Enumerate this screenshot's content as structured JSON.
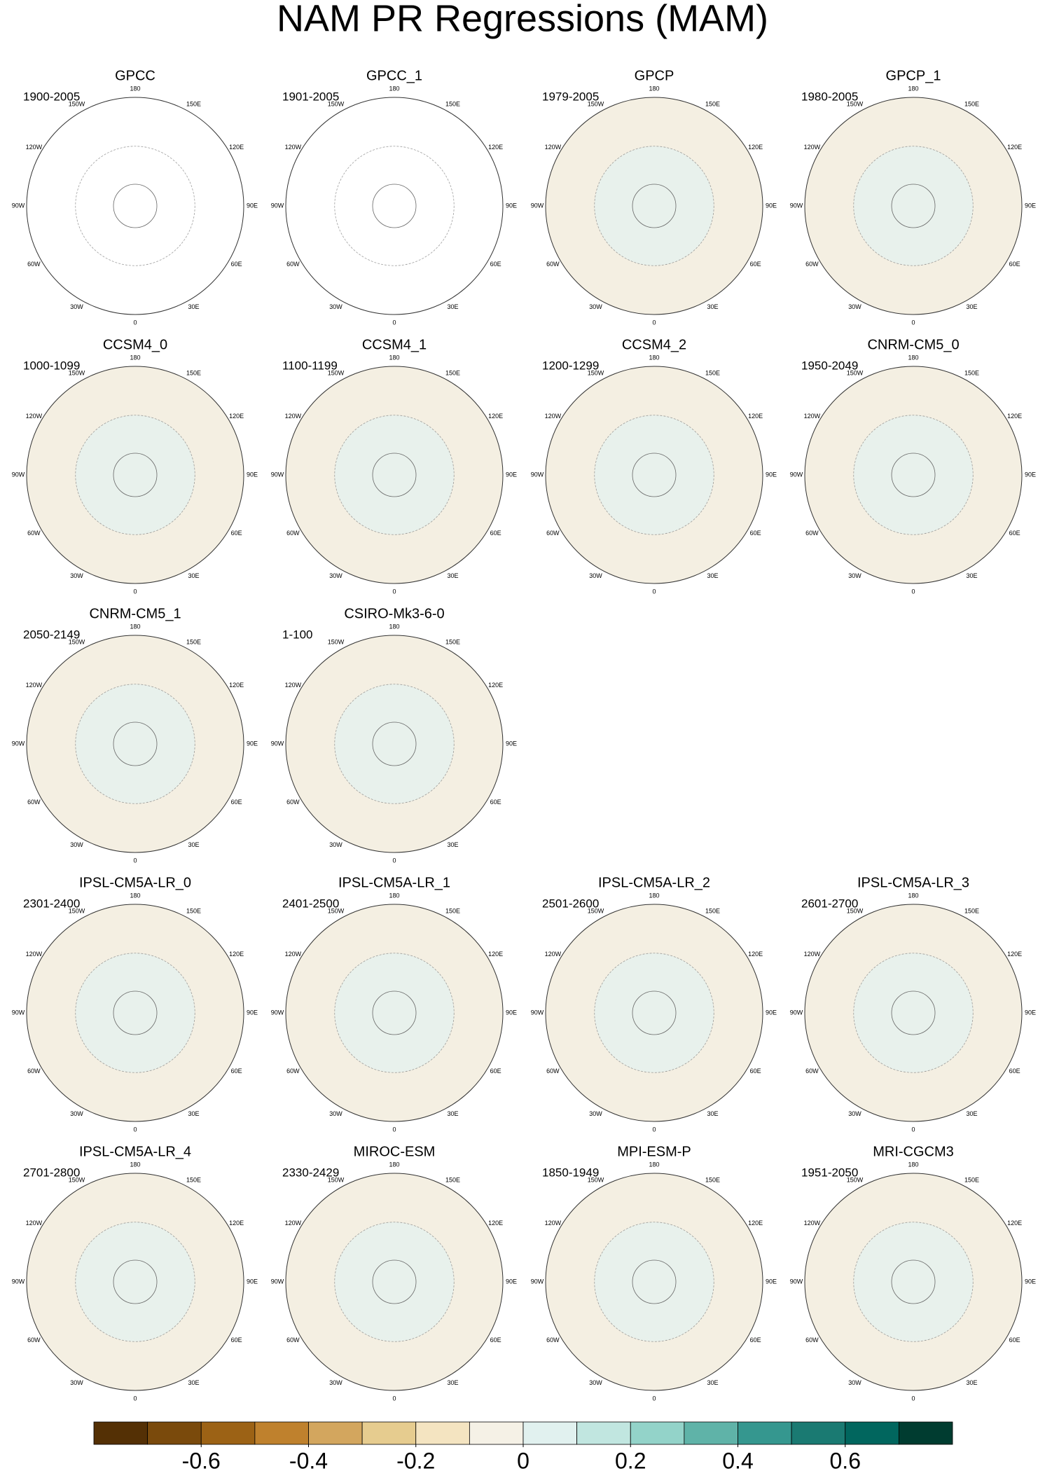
{
  "title": "NAM PR Regressions (MAM)",
  "rows": [
    [
      {
        "name": "GPCC",
        "period": "1900-2005"
      },
      {
        "name": "GPCC_1",
        "period": "1901-2005"
      },
      {
        "name": "GPCP",
        "period": "1979-2005"
      },
      {
        "name": "GPCP_1",
        "period": "1980-2005"
      }
    ],
    [
      {
        "name": "CCSM4_0",
        "period": "1000-1099"
      },
      {
        "name": "CCSM4_1",
        "period": "1100-1199"
      },
      {
        "name": "CCSM4_2",
        "period": "1200-1299"
      },
      {
        "name": "CNRM-CM5_0",
        "period": "1950-2049"
      }
    ],
    [
      {
        "name": "CNRM-CM5_1",
        "period": "2050-2149"
      },
      {
        "name": "CSIRO-Mk3-6-0",
        "period": "1-100"
      }
    ],
    [
      {
        "name": "IPSL-CM5A-LR_0",
        "period": "2301-2400"
      },
      {
        "name": "IPSL-CM5A-LR_1",
        "period": "2401-2500"
      },
      {
        "name": "IPSL-CM5A-LR_2",
        "period": "2501-2600"
      },
      {
        "name": "IPSL-CM5A-LR_3",
        "period": "2601-2700"
      }
    ],
    [
      {
        "name": "IPSL-CM5A-LR_4",
        "period": "2701-2800"
      },
      {
        "name": "MIROC-ESM",
        "period": "2330-2429"
      },
      {
        "name": "MPI-ESM-P",
        "period": "1850-1949"
      },
      {
        "name": "MRI-CGCM3",
        "period": "1951-2050"
      }
    ]
  ],
  "lon_ticks": [
    180,
    {
      "value": 150,
      "label": "150E"
    },
    {
      "value": 120,
      "label": "120E"
    },
    {
      "value": 90,
      "label": "90E"
    },
    {
      "value": 60,
      "label": "60E"
    },
    {
      "value": 30,
      "label": "30E"
    },
    0,
    {
      "value": -30,
      "label": "30W"
    },
    {
      "value": -60,
      "label": "60W"
    },
    {
      "value": -90,
      "label": "90W"
    },
    {
      "value": -120,
      "label": "120W"
    },
    {
      "value": -150,
      "label": "150W"
    }
  ],
  "colorbar": {
    "xlim": [
      -0.8,
      0.8
    ],
    "xticks": [
      -0.6,
      -0.4,
      -0.2,
      0,
      0.2,
      0.4,
      0.6
    ],
    "colors": [
      "#543005",
      "#7a4a0c",
      "#9c6215",
      "#bf812d",
      "#d3a65e",
      "#e6cc8f",
      "#f4e4c1",
      "#f5f1e6",
      "#e1f1ef",
      "#c1e6e0",
      "#93d3c9",
      "#5fb3a8",
      "#35978f",
      "#1a7a72",
      "#01665e",
      "#003c30"
    ]
  }
}
